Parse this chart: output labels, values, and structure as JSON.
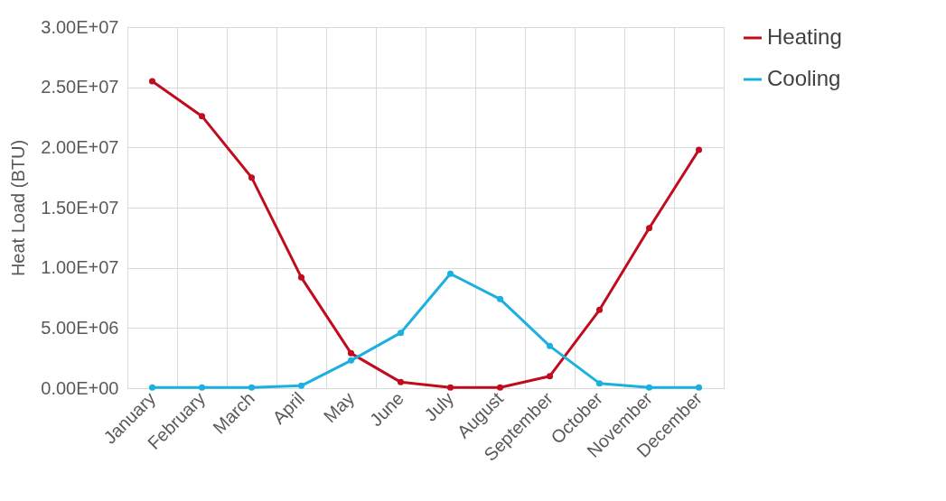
{
  "chart_data": {
    "type": "line",
    "ylabel": "Heat Load (BTU)",
    "categories": [
      "January",
      "February",
      "March",
      "April",
      "May",
      "June",
      "July",
      "August",
      "September",
      "October",
      "November",
      "December"
    ],
    "series": [
      {
        "name": "Heating",
        "color": "#c00d1e",
        "values": [
          25500000,
          22600000,
          17500000,
          9200000,
          2900000,
          500000,
          50000,
          50000,
          1000000,
          6500000,
          13300000,
          19800000
        ]
      },
      {
        "name": "Cooling",
        "color": "#1bb0e0",
        "values": [
          50000,
          50000,
          50000,
          200000,
          2300000,
          4600000,
          9500000,
          7400000,
          3500000,
          400000,
          50000,
          50000
        ]
      }
    ],
    "ylim": [
      0,
      30000000
    ],
    "yticks": [
      {
        "value": 0,
        "label": "0.00E+00"
      },
      {
        "value": 5000000,
        "label": "5.00E+06"
      },
      {
        "value": 10000000,
        "label": "1.00E+07"
      },
      {
        "value": 15000000,
        "label": "1.50E+07"
      },
      {
        "value": 20000000,
        "label": "2.00E+07"
      },
      {
        "value": 25000000,
        "label": "2.50E+07"
      },
      {
        "value": 30000000,
        "label": "3.00E+07"
      }
    ],
    "grid": true,
    "legend": "right",
    "marker": "circle",
    "line_style": "solid"
  }
}
